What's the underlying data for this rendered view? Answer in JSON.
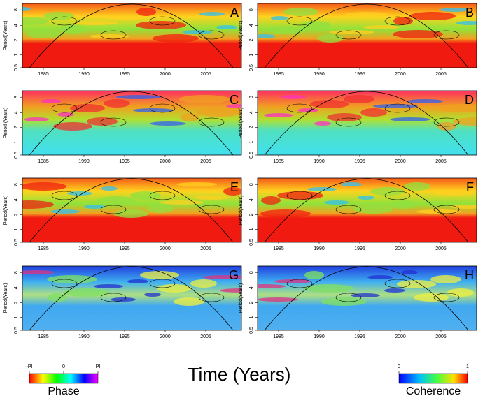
{
  "figure": {
    "panels": [
      {
        "label": "A",
        "y_label": "Period(Years)"
      },
      {
        "label": "B",
        "y_label": "Period(Years)"
      },
      {
        "label": "C",
        "y_label": "Period (Years)"
      },
      {
        "label": "D",
        "y_label": "Period (Years)"
      },
      {
        "label": "E",
        "y_label": "Period(Years)"
      },
      {
        "label": "F",
        "y_label": "Period(Years)"
      },
      {
        "label": "G",
        "y_label": "Period(Years)"
      },
      {
        "label": "H",
        "y_label": "Period(Years)"
      }
    ],
    "x_ticks": [
      1985,
      1990,
      1995,
      2000,
      2005
    ],
    "y_ticks": [
      8,
      4,
      2,
      1,
      0.5
    ],
    "x_title": "Time (Years)",
    "phase_legend": {
      "title": "Phase",
      "ticks": [
        "-PI",
        "0",
        "PI"
      ]
    },
    "coherence_legend": {
      "title": "Coherence",
      "ticks": [
        "0",
        "1"
      ]
    }
  }
}
